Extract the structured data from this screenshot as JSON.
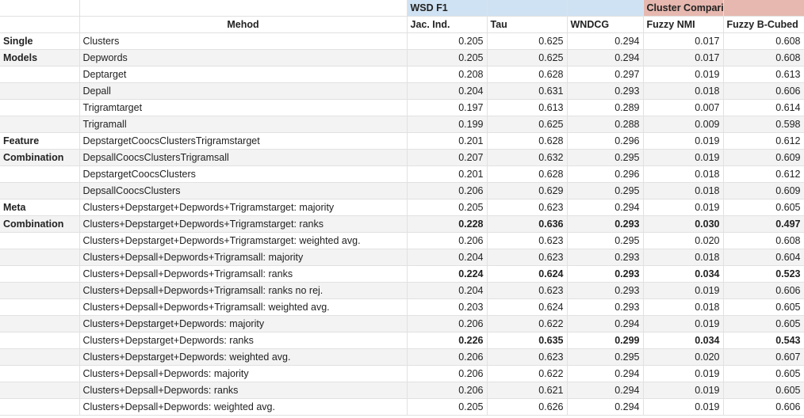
{
  "header": {
    "group_wsd": "WSD F1",
    "group_cluster": "Cluster Comparison",
    "method": "Mehod",
    "columns": [
      "Jac. Ind.",
      "Tau",
      "WNDCG",
      "Fuzzy NMI",
      "Fuzzy B-Cubed"
    ]
  },
  "rows": [
    {
      "category": "Single",
      "method": "Clusters",
      "values": [
        "0.205",
        "0.625",
        "0.294",
        "0.017",
        "0.608"
      ],
      "bold": false
    },
    {
      "category": "Models",
      "method": "Depwords",
      "values": [
        "0.205",
        "0.625",
        "0.294",
        "0.017",
        "0.608"
      ],
      "bold": false
    },
    {
      "category": "",
      "method": "Deptarget",
      "values": [
        "0.208",
        "0.628",
        "0.297",
        "0.019",
        "0.613"
      ],
      "bold": false
    },
    {
      "category": "",
      "method": "Depall",
      "values": [
        "0.204",
        "0.631",
        "0.293",
        "0.018",
        "0.606"
      ],
      "bold": false
    },
    {
      "category": "",
      "method": "Trigramtarget",
      "values": [
        "0.197",
        "0.613",
        "0.289",
        "0.007",
        "0.614"
      ],
      "bold": false
    },
    {
      "category": "",
      "method": "Trigramall",
      "values": [
        "0.199",
        "0.625",
        "0.288",
        "0.009",
        "0.598"
      ],
      "bold": false
    },
    {
      "category": "Feature",
      "method": "DepstargetCoocsClustersTrigramstarget",
      "values": [
        "0.201",
        "0.628",
        "0.296",
        "0.019",
        "0.612"
      ],
      "bold": false
    },
    {
      "category": "Combination",
      "method": "DepsallCoocsClustersTrigramsall",
      "values": [
        "0.207",
        "0.632",
        "0.295",
        "0.019",
        "0.609"
      ],
      "bold": false
    },
    {
      "category": "",
      "method": "DepstargetCoocsClusters",
      "values": [
        "0.201",
        "0.628",
        "0.296",
        "0.018",
        "0.612"
      ],
      "bold": false
    },
    {
      "category": "",
      "method": "DepsallCoocsClusters",
      "values": [
        "0.206",
        "0.629",
        "0.295",
        "0.018",
        "0.609"
      ],
      "bold": false
    },
    {
      "category": "Meta",
      "method": "Clusters+Depstarget+Depwords+Trigramstarget: majority",
      "values": [
        "0.205",
        "0.623",
        "0.294",
        "0.019",
        "0.605"
      ],
      "bold": false
    },
    {
      "category": "Combination",
      "method": "Clusters+Depstarget+Depwords+Trigramstarget: ranks",
      "values": [
        "0.228",
        "0.636",
        "0.293",
        "0.030",
        "0.497"
      ],
      "bold": true
    },
    {
      "category": "",
      "method": "Clusters+Depstarget+Depwords+Trigramstarget: weighted avg.",
      "values": [
        "0.206",
        "0.623",
        "0.295",
        "0.020",
        "0.608"
      ],
      "bold": false
    },
    {
      "category": "",
      "method": "Clusters+Depsall+Depwords+Trigramsall: majority",
      "values": [
        "0.204",
        "0.623",
        "0.293",
        "0.018",
        "0.604"
      ],
      "bold": false
    },
    {
      "category": "",
      "method": "Clusters+Depsall+Depwords+Trigramsall: ranks",
      "values": [
        "0.224",
        "0.624",
        "0.293",
        "0.034",
        "0.523"
      ],
      "bold": true
    },
    {
      "category": "",
      "method": "Clusters+Depsall+Depwords+Trigramsall: ranks no rej.",
      "values": [
        "0.204",
        "0.623",
        "0.293",
        "0.019",
        "0.606"
      ],
      "bold": false
    },
    {
      "category": "",
      "method": "Clusters+Depsall+Depwords+Trigramsall: weighted avg.",
      "values": [
        "0.203",
        "0.624",
        "0.293",
        "0.018",
        "0.605"
      ],
      "bold": false
    },
    {
      "category": "",
      "method": "Clusters+Depstarget+Depwords: majority",
      "values": [
        "0.206",
        "0.622",
        "0.294",
        "0.019",
        "0.605"
      ],
      "bold": false
    },
    {
      "category": "",
      "method": "Clusters+Depstarget+Depwords: ranks",
      "values": [
        "0.226",
        "0.635",
        "0.299",
        "0.034",
        "0.543"
      ],
      "bold": true
    },
    {
      "category": "",
      "method": "Clusters+Depstarget+Depwords: weighted avg.",
      "values": [
        "0.206",
        "0.623",
        "0.295",
        "0.020",
        "0.607"
      ],
      "bold": false
    },
    {
      "category": "",
      "method": "Clusters+Depsall+Depwords: majority",
      "values": [
        "0.206",
        "0.622",
        "0.294",
        "0.019",
        "0.605"
      ],
      "bold": false
    },
    {
      "category": "",
      "method": "Clusters+Depsall+Depwords: ranks",
      "values": [
        "0.206",
        "0.621",
        "0.294",
        "0.019",
        "0.605"
      ],
      "bold": false
    },
    {
      "category": "",
      "method": "Clusters+Depsall+Depwords: weighted avg.",
      "values": [
        "0.205",
        "0.626",
        "0.294",
        "0.019",
        "0.606"
      ],
      "bold": false
    }
  ]
}
